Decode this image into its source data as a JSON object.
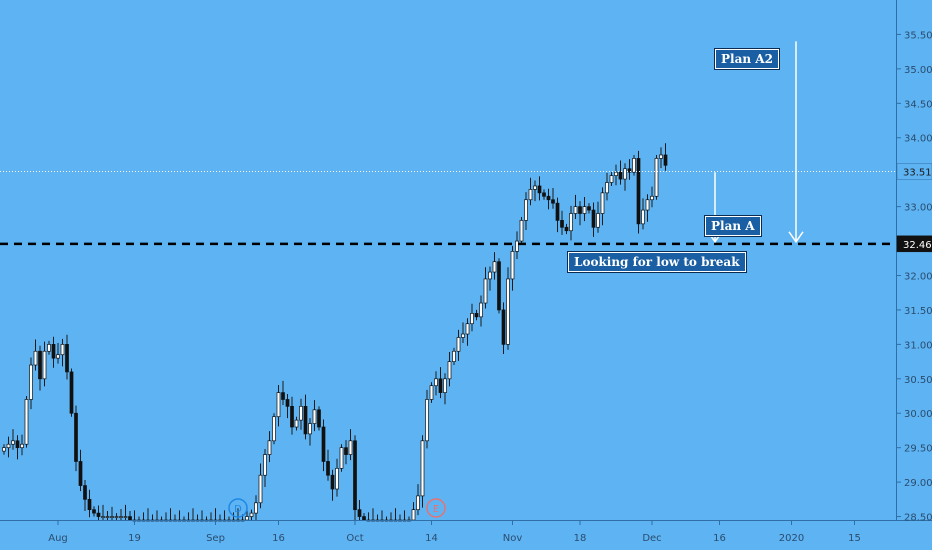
{
  "chart_data": {
    "type": "candlestick",
    "y_axis": {
      "ticks": [
        "35.50",
        "35.00",
        "34.50",
        "34.00",
        "33.50",
        "33.00",
        "32.50",
        "32.00",
        "31.50",
        "31.00",
        "30.50",
        "30.00",
        "29.50",
        "29.00",
        "28.50"
      ],
      "tick_values": [
        35.5,
        35.0,
        34.5,
        34.0,
        33.5,
        33.0,
        32.5,
        32.0,
        31.5,
        31.0,
        30.5,
        30.0,
        29.5,
        29.0,
        28.5
      ],
      "ylim": [
        28.45,
        36.0
      ]
    },
    "x_axis": {
      "ticks": [
        "Aug",
        "19",
        "Sep",
        "16",
        "Oct",
        "14",
        "Nov",
        "18",
        "Dec",
        "16",
        "2020",
        "15"
      ],
      "tick_index": [
        12,
        29,
        47,
        61,
        78,
        95,
        113,
        128,
        144,
        159,
        175,
        189
      ]
    },
    "last_price": {
      "label": "33.51",
      "value": 33.51
    },
    "key_level": {
      "label": "32.46",
      "value": 32.46
    },
    "events": [
      {
        "label": "D",
        "index": 52,
        "color": "#1e88e5"
      },
      {
        "label": "E",
        "index": 96,
        "color": "#e57373"
      }
    ],
    "annotations": [
      {
        "text": "Plan A2",
        "index": 165,
        "value": 35.15
      },
      {
        "text": "Plan A",
        "index": 162,
        "value": 32.72
      },
      {
        "text": "Looking for low to break",
        "index": 145,
        "value": 32.2
      }
    ],
    "arrows": [
      {
        "name": "plan-a-arrow",
        "index": 158,
        "from": 33.5,
        "to": 32.46
      },
      {
        "name": "plan-a2-arrow",
        "index": 176,
        "from": 35.4,
        "to": 32.46
      }
    ],
    "closes": [
      29.5,
      29.55,
      29.6,
      29.5,
      29.55,
      30.2,
      30.7,
      30.9,
      30.5,
      30.9,
      31.0,
      30.8,
      30.85,
      31.0,
      30.6,
      30.0,
      29.3,
      28.95,
      28.75,
      28.6,
      28.55,
      28.5,
      28.5,
      28.5,
      28.5,
      28.5,
      28.5,
      28.5,
      28.45,
      28.45,
      28.45,
      28.45,
      28.45,
      28.45,
      28.45,
      28.45,
      28.45,
      28.45,
      28.45,
      28.45,
      28.45,
      28.45,
      28.45,
      28.45,
      28.45,
      28.45,
      28.45,
      28.45,
      28.45,
      28.45,
      28.45,
      28.45,
      28.45,
      28.45,
      28.5,
      28.55,
      28.7,
      29.1,
      29.4,
      29.6,
      29.95,
      30.3,
      30.2,
      30.1,
      29.8,
      29.9,
      30.1,
      29.7,
      29.85,
      30.05,
      29.8,
      29.3,
      29.1,
      28.9,
      29.2,
      29.5,
      29.4,
      29.6,
      28.6,
      28.5,
      28.45,
      28.45,
      28.45,
      28.45,
      28.45,
      28.45,
      28.45,
      28.45,
      28.45,
      28.45,
      28.45,
      28.6,
      28.8,
      29.6,
      30.2,
      30.4,
      30.5,
      30.3,
      30.5,
      30.75,
      30.9,
      31.1,
      31.15,
      31.3,
      31.45,
      31.4,
      31.6,
      31.95,
      32.05,
      32.2,
      31.5,
      31.0,
      31.95,
      32.35,
      32.5,
      32.8,
      33.1,
      33.25,
      33.3,
      33.2,
      33.15,
      33.1,
      33.05,
      32.8,
      32.7,
      32.65,
      32.9,
      33.0,
      32.9,
      33.0,
      32.95,
      32.7,
      32.9,
      33.2,
      33.35,
      33.45,
      33.5,
      33.4,
      33.55,
      33.5,
      33.7,
      32.75,
      32.95,
      33.1,
      33.15,
      33.7,
      33.75,
      33.6
    ]
  }
}
